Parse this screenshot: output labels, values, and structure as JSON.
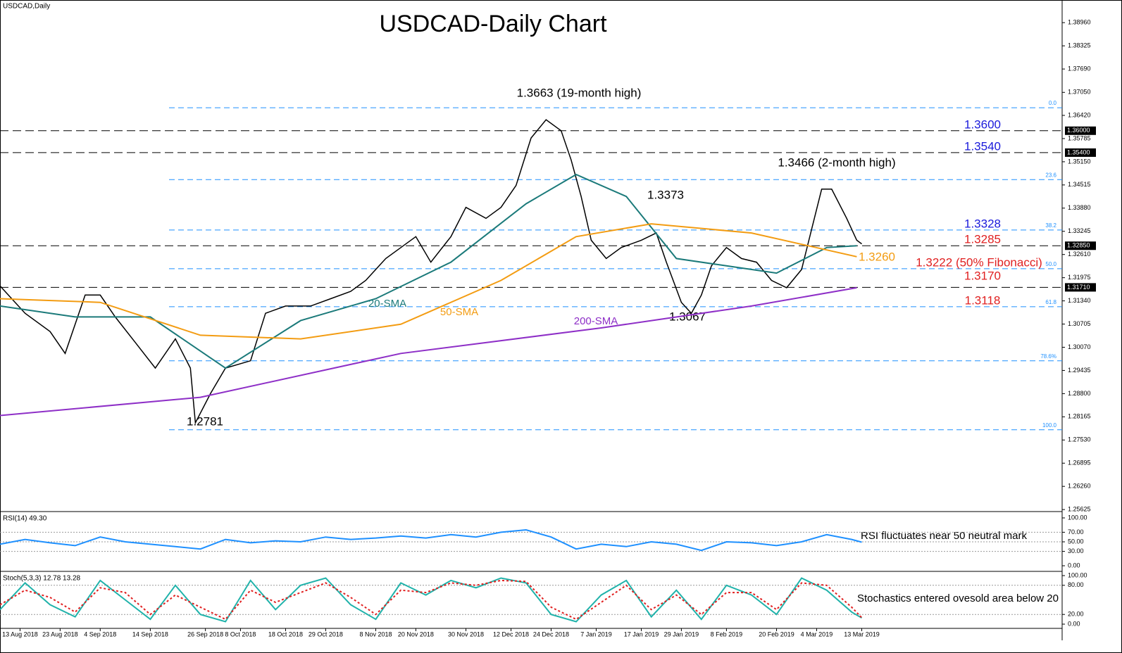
{
  "chart_data": [
    {
      "type": "line",
      "title": "USDCAD-Daily Chart",
      "symbol": "USDCAD,Daily",
      "xlim": [
        0,
        212
      ],
      "ylim": [
        1.2557,
        1.3958
      ],
      "xticks": [
        {
          "value": 4,
          "label": "13 Aug 2018"
        },
        {
          "value": 12,
          "label": "23 Aug 2018"
        },
        {
          "value": 20,
          "label": "4 Sep 2018"
        },
        {
          "value": 30,
          "label": "14 Sep 2018"
        },
        {
          "value": 41,
          "label": "26 Sep 2018"
        },
        {
          "value": 48,
          "label": "8 Oct 2018"
        },
        {
          "value": 57,
          "label": "18 Oct 2018"
        },
        {
          "value": 65,
          "label": "29 Oct 2018"
        },
        {
          "value": 75,
          "label": "8 Nov 2018"
        },
        {
          "value": 83,
          "label": "20 Nov 2018"
        },
        {
          "value": 93,
          "label": "30 Nov 2018"
        },
        {
          "value": 102,
          "label": "12 Dec 2018"
        },
        {
          "value": 110,
          "label": "24 Dec 2018"
        },
        {
          "value": 119,
          "label": "7 Jan 2019"
        },
        {
          "value": 128,
          "label": "17 Jan 2019"
        },
        {
          "value": 136,
          "label": "29 Jan 2019"
        },
        {
          "value": 145,
          "label": "8 Feb 2019"
        },
        {
          "value": 155,
          "label": "20 Feb 2019"
        },
        {
          "value": 163,
          "label": "4 Mar 2019"
        },
        {
          "value": 172,
          "label": "13 Mar 2019"
        }
      ],
      "yticks": [
        {
          "value": 1.3896,
          "label": "1.38960"
        },
        {
          "value": 1.38325,
          "label": "1.38325"
        },
        {
          "value": 1.3769,
          "label": "1.37690"
        },
        {
          "value": 1.3705,
          "label": "1.37050"
        },
        {
          "value": 1.3642,
          "label": "1.36420"
        },
        {
          "value": 1.35785,
          "label": "1.35785"
        },
        {
          "value": 1.3515,
          "label": "1.35150"
        },
        {
          "value": 1.34515,
          "label": "1.34515"
        },
        {
          "value": 1.3388,
          "label": "1.33880"
        },
        {
          "value": 1.33245,
          "label": "1.33245"
        },
        {
          "value": 1.3261,
          "label": "1.32610"
        },
        {
          "value": 1.31975,
          "label": "1.31975"
        },
        {
          "value": 1.3134,
          "label": "1.31340"
        },
        {
          "value": 1.30705,
          "label": "1.30705"
        },
        {
          "value": 1.3007,
          "label": "1.30070"
        },
        {
          "value": 1.29435,
          "label": "1.29435"
        },
        {
          "value": 1.288,
          "label": "1.28800"
        },
        {
          "value": 1.28165,
          "label": "1.28165"
        },
        {
          "value": 1.2753,
          "label": "1.27530"
        },
        {
          "value": 1.26895,
          "label": "1.26895"
        },
        {
          "value": 1.2626,
          "label": "1.26260"
        },
        {
          "value": 1.25625,
          "label": "1.25625"
        }
      ],
      "series": [
        {
          "color": "#000000",
          "x": [
            0,
            5,
            10,
            13,
            17,
            20,
            23,
            27,
            31,
            35,
            38,
            39,
            42,
            45,
            50,
            53,
            57,
            62,
            66,
            70,
            73,
            77,
            80,
            83,
            86,
            90,
            93,
            97,
            100,
            103,
            106,
            109,
            112,
            114,
            116,
            118,
            121,
            124,
            128,
            131,
            133,
            136,
            138,
            140,
            142,
            145,
            148,
            151,
            154,
            157,
            160,
            162,
            164,
            166,
            169,
            171,
            172
          ],
          "values": [
            1.3175,
            1.31,
            1.305,
            1.299,
            1.315,
            1.315,
            1.309,
            1.302,
            1.295,
            1.303,
            1.295,
            1.28,
            1.288,
            1.295,
            1.297,
            1.31,
            1.312,
            1.312,
            1.314,
            1.316,
            1.319,
            1.325,
            1.328,
            1.331,
            1.324,
            1.331,
            1.339,
            1.336,
            1.339,
            1.345,
            1.358,
            1.363,
            1.36,
            1.352,
            1.342,
            1.33,
            1.325,
            1.328,
            1.33,
            1.332,
            1.324,
            1.313,
            1.31,
            1.315,
            1.323,
            1.328,
            1.325,
            1.324,
            1.319,
            1.317,
            1.322,
            1.333,
            1.344,
            1.344,
            1.336,
            1.33,
            1.329
          ]
        },
        {
          "name": "20-SMA",
          "color": "#1b7a7a",
          "x": [
            0,
            15,
            30,
            45,
            60,
            75,
            90,
            105,
            115,
            125,
            135,
            145,
            155,
            165,
            171
          ],
          "values": [
            1.312,
            1.309,
            1.309,
            1.295,
            1.308,
            1.314,
            1.324,
            1.34,
            1.348,
            1.342,
            1.325,
            1.323,
            1.321,
            1.328,
            1.3285
          ]
        },
        {
          "name": "50-SMA",
          "color": "#f39c12",
          "x": [
            0,
            20,
            40,
            60,
            80,
            100,
            115,
            130,
            150,
            171
          ],
          "values": [
            1.314,
            1.313,
            1.304,
            1.303,
            1.307,
            1.319,
            1.331,
            1.3345,
            1.332,
            1.3255
          ]
        },
        {
          "name": "200-SMA",
          "color": "#8e2fc7",
          "x": [
            0,
            40,
            80,
            120,
            150,
            171
          ],
          "values": [
            1.282,
            1.287,
            1.299,
            1.306,
            1.312,
            1.317
          ]
        }
      ],
      "price_tags": [
        {
          "value": 1.36,
          "label": "1.36000"
        },
        {
          "value": 1.354,
          "label": "1.35400"
        },
        {
          "value": 1.3285,
          "label": "1.32850"
        },
        {
          "value": 1.3171,
          "label": "1.31710"
        }
      ],
      "fibonacci": [
        {
          "value": 1.3663,
          "label": "0.0"
        },
        {
          "value": 1.3466,
          "label": "23.6"
        },
        {
          "value": 1.3328,
          "label": "38.2"
        },
        {
          "value": 1.3222,
          "label": "50.0"
        },
        {
          "value": 1.3118,
          "label": "61.8"
        },
        {
          "value": 1.297,
          "label": "78.6%"
        },
        {
          "value": 1.2781,
          "label": "100.0"
        }
      ],
      "levels": [
        {
          "value": 1.36,
          "label": "1.3600",
          "color": "#1a1adb"
        },
        {
          "value": 1.354,
          "label": "1.3540",
          "color": "#1a1adb"
        },
        {
          "value": 1.3328,
          "label": "1.3328",
          "color": "#1a1adb"
        },
        {
          "value": 1.3285,
          "label": "1.3285",
          "color": "#e02020"
        },
        {
          "value": 1.326,
          "label": "1.3260",
          "color": "#f39c12"
        },
        {
          "value": 1.3222,
          "label": "1.3222 (50% Fibonacci)",
          "color": "#e02020"
        },
        {
          "value": 1.317,
          "label": "1.3170",
          "color": "#e02020"
        },
        {
          "value": 1.3118,
          "label": "1.3118",
          "color": "#e02020"
        }
      ],
      "annotations": [
        "1.3663 (19-month high)",
        "1.3466 (2-month high)",
        "1.3373",
        "1.3067",
        "1.2781"
      ]
    },
    {
      "type": "line",
      "label": "RSI(14) 49.30",
      "annotation": "RSI fluctuates near 50 neutral mark",
      "ylim": [
        0,
        100
      ],
      "yticks": [
        {
          "value": 100,
          "label": "100.00"
        },
        {
          "value": 70,
          "label": "70.00"
        },
        {
          "value": 50,
          "label": "50.00"
        },
        {
          "value": 30,
          "label": "30.00"
        },
        {
          "value": 0,
          "label": "0.00"
        }
      ],
      "series": [
        {
          "color": "#1e90ff",
          "x": [
            0,
            5,
            10,
            15,
            20,
            25,
            30,
            35,
            40,
            45,
            50,
            55,
            60,
            65,
            70,
            75,
            80,
            85,
            90,
            95,
            100,
            105,
            110,
            115,
            120,
            125,
            130,
            135,
            140,
            145,
            150,
            155,
            160,
            165,
            170,
            172
          ],
          "values": [
            45,
            55,
            48,
            42,
            60,
            50,
            45,
            40,
            35,
            55,
            48,
            52,
            50,
            60,
            55,
            58,
            62,
            58,
            65,
            60,
            70,
            75,
            60,
            35,
            45,
            40,
            50,
            45,
            32,
            50,
            48,
            42,
            50,
            65,
            55,
            49.3
          ]
        }
      ]
    },
    {
      "type": "line",
      "label": "Stoch(5,3,3) 12.78 13.28",
      "annotation": "Stochastics entered ovesold area below 20",
      "ylim": [
        0,
        100
      ],
      "yticks": [
        {
          "value": 100,
          "label": "100.00"
        },
        {
          "value": 80,
          "label": "80.00"
        },
        {
          "value": 20,
          "label": "20.00"
        },
        {
          "value": 0,
          "label": "0.00"
        }
      ],
      "series": [
        {
          "color": "#20b2aa",
          "x": [
            0,
            5,
            10,
            15,
            20,
            25,
            30,
            35,
            40,
            45,
            50,
            55,
            60,
            65,
            70,
            75,
            80,
            85,
            90,
            95,
            100,
            105,
            110,
            115,
            120,
            125,
            130,
            135,
            140,
            145,
            150,
            155,
            160,
            165,
            170,
            172
          ],
          "values": [
            30,
            85,
            40,
            15,
            90,
            50,
            10,
            80,
            20,
            5,
            90,
            30,
            80,
            95,
            40,
            10,
            85,
            60,
            90,
            75,
            95,
            85,
            20,
            5,
            60,
            90,
            15,
            70,
            10,
            80,
            60,
            20,
            95,
            70,
            25,
            12.78
          ]
        },
        {
          "color": "#e02020",
          "dash": true,
          "x": [
            0,
            5,
            10,
            15,
            20,
            25,
            30,
            35,
            40,
            45,
            50,
            55,
            60,
            65,
            70,
            75,
            80,
            85,
            90,
            95,
            100,
            105,
            110,
            115,
            120,
            125,
            130,
            135,
            140,
            145,
            150,
            155,
            160,
            165,
            170,
            172
          ],
          "values": [
            40,
            70,
            55,
            25,
            75,
            65,
            20,
            60,
            35,
            10,
            70,
            45,
            65,
            85,
            55,
            20,
            70,
            65,
            85,
            80,
            90,
            88,
            35,
            10,
            45,
            80,
            30,
            60,
            20,
            65,
            65,
            30,
            85,
            80,
            35,
            13.28
          ]
        }
      ]
    }
  ]
}
